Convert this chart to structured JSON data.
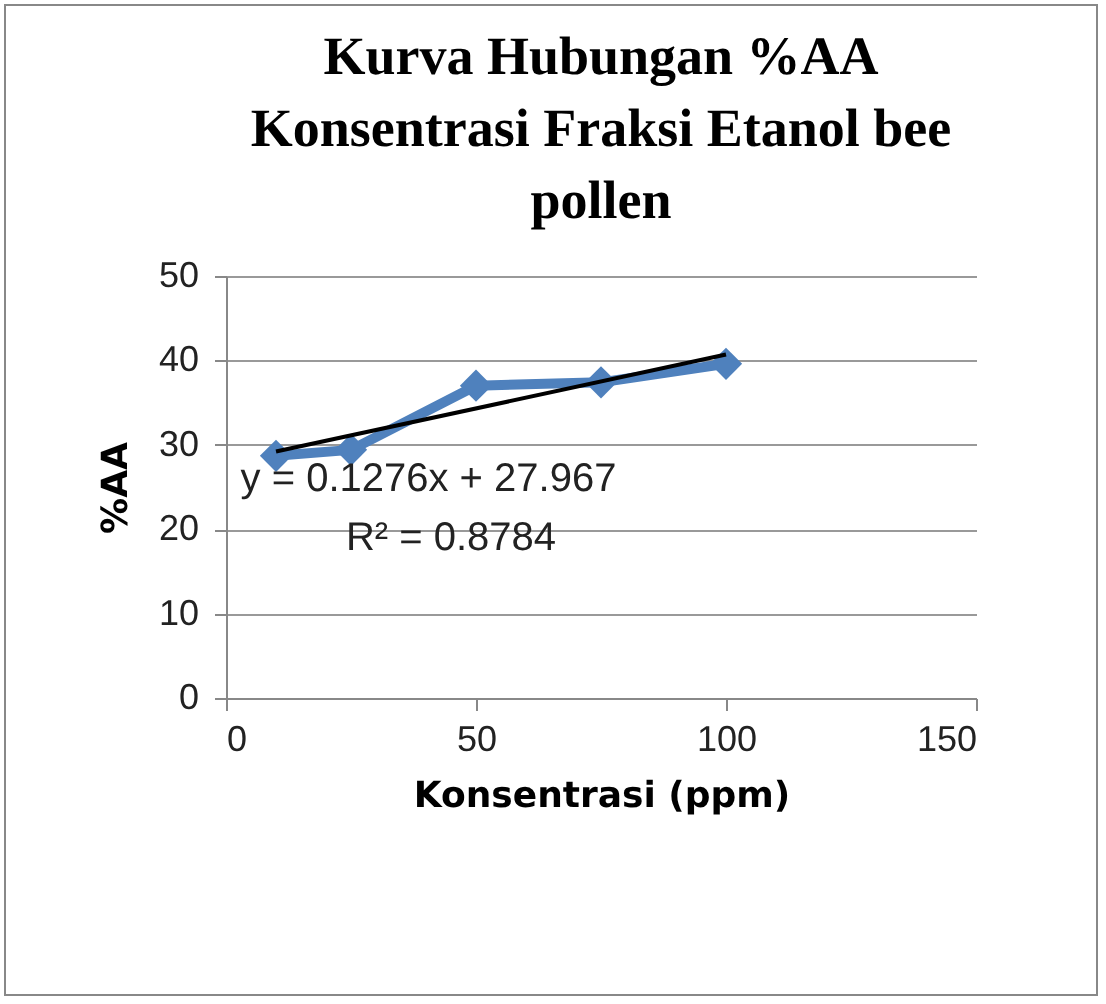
{
  "chart_data": {
    "type": "line",
    "title": "Kurva Hubungan %AA Konsentrasi Fraksi Etanol bee pollen",
    "xlabel": "Konsentrasi  (ppm)",
    "ylabel": "%AA",
    "x": [
      10,
      25,
      50,
      75,
      100
    ],
    "series": [
      {
        "color": "#4f81bd",
        "values": [
          28.7,
          29.4,
          37.0,
          37.4,
          39.6
        ],
        "marker": "diamond"
      },
      {
        "type": "line",
        "color": "#000000",
        "x": [
          10,
          100
        ],
        "values": [
          29.2,
          40.7
        ],
        "marker": "none"
      }
    ],
    "xlim": [
      0,
      150
    ],
    "xticks": [
      0,
      50,
      100,
      150
    ],
    "ylim": [
      0,
      50
    ],
    "yticks": [
      0,
      10,
      20,
      30,
      40,
      50
    ],
    "grid": "y",
    "annotations": [
      "y = 0.1276x + 27.967",
      "R² = 0.8784"
    ]
  }
}
